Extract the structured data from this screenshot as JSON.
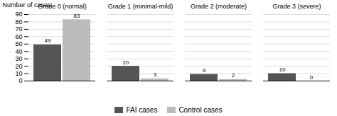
{
  "chart_data": {
    "type": "bar",
    "categories": [
      "Grade 0 (normal)",
      "Grade 1 (minimal-mild)",
      "Grade 2 (moderate)",
      "Grade 3 (severe)"
    ],
    "series": [
      {
        "name": "FAI cases",
        "color": "#555555",
        "values": [
          49,
          20,
          9,
          10
        ]
      },
      {
        "name": "Control cases",
        "color": "#bbbbbb",
        "values": [
          83,
          3,
          2,
          0
        ]
      }
    ],
    "ylabel": "Number of cases",
    "ylim": [
      0,
      90
    ],
    "yticks": [
      0,
      10,
      20,
      30,
      40,
      50,
      60,
      70,
      80,
      90
    ],
    "grid": true,
    "data_labels": true,
    "legend": "bottom"
  }
}
